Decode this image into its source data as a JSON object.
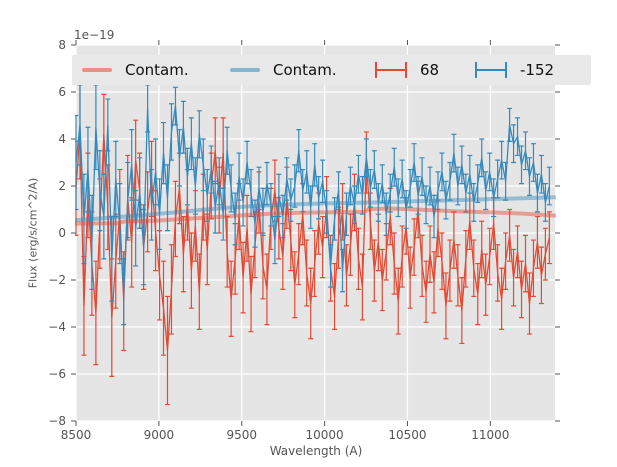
{
  "chart_data": {
    "type": "line",
    "subtype": "spectrum with errorbars",
    "title": "",
    "xlabel": "Wavelength (A)",
    "ylabel": "Flux (erg/s/cm^2/A)",
    "offset_text": "1e−19",
    "xlim": [
      8500,
      11390
    ],
    "ylim": [
      -8,
      8
    ],
    "xticks": [
      8500,
      9000,
      9500,
      10000,
      10500,
      11000
    ],
    "yticks": [
      -8,
      -6,
      -4,
      -2,
      0,
      2,
      4,
      6,
      8
    ],
    "grid": true,
    "legend_position": "upper center, single row",
    "colors": {
      "red": "#E24A33",
      "blue": "#348ABD",
      "plot_bg": "#E5E5E5",
      "grid": "#FFFFFF",
      "tick_text": "#555555",
      "legend_bg": "#E8E8E8"
    },
    "legend": [
      {
        "label": "Contam.",
        "swatch": "thick-line",
        "color": "#E24A33"
      },
      {
        "label": "Contam.",
        "swatch": "thick-line",
        "color": "#348ABD"
      },
      {
        "label": "68",
        "swatch": "errorbar",
        "color": "#E24A33"
      },
      {
        "label": "-152",
        "swatch": "errorbar",
        "color": "#348ABD"
      }
    ],
    "series": [
      {
        "name": "Contam.",
        "color_key": "red",
        "style": "thick-translucent-line",
        "x": [
          8500,
          8650,
          8750,
          8800,
          8900,
          9000,
          9100,
          9250,
          9400,
          9550,
          9700,
          9850,
          10000,
          10150,
          10240,
          10270,
          10400,
          10550,
          10700,
          10850,
          11000,
          11150,
          11300,
          11390
        ],
        "y": [
          0.4,
          0.41,
          0.42,
          0.5,
          0.51,
          0.53,
          0.58,
          0.64,
          0.7,
          0.77,
          0.83,
          0.86,
          0.88,
          0.89,
          0.9,
          1.02,
          1.04,
          1.0,
          0.95,
          0.91,
          0.88,
          0.84,
          0.78,
          0.74
        ]
      },
      {
        "name": "Contam.",
        "color_key": "blue",
        "style": "thick-translucent-line",
        "x": [
          8500,
          8650,
          8800,
          8950,
          9100,
          9250,
          9400,
          9550,
          9700,
          9850,
          10000,
          10150,
          10300,
          10450,
          10600,
          10750,
          10900,
          11050,
          11200,
          11390
        ],
        "y": [
          0.55,
          0.62,
          0.7,
          0.79,
          0.88,
          0.98,
          1.07,
          1.14,
          1.19,
          1.23,
          1.26,
          1.28,
          1.3,
          1.33,
          1.36,
          1.39,
          1.42,
          1.45,
          1.48,
          1.52
        ]
      },
      {
        "name": "68",
        "color_key": "red",
        "style": "errorbar",
        "x_start": 8500,
        "x_step": 24,
        "y": [
          1.9,
          4.3,
          -3.1,
          1.6,
          -1.3,
          -3.4,
          0.4,
          4.2,
          1.1,
          -3.6,
          -1.2,
          0.8,
          -2.9,
          1.5,
          -0.4,
          3.1,
          1.8,
          -0.6,
          0.9,
          2.3,
          0.1,
          -1.8,
          -3.2,
          -5.0,
          -2.4,
          0.6,
          1.9,
          -0.9,
          1.2,
          -1.6,
          0.3,
          -2.5,
          1.1,
          -0.7,
          2.0,
          3.5,
          1.4,
          3.4,
          -0.8,
          -2.8,
          -1.1,
          0.7,
          -1.9,
          0.2,
          -2.6,
          -0.5,
          1.3,
          -1.4,
          -2.4,
          0.6,
          1.8,
          0.2,
          -1.0,
          1.5,
          -0.3,
          -2.2,
          -0.9,
          0.8,
          -1.7,
          -3.0,
          -1.3,
          0.4,
          -0.6,
          1.1,
          -1.5,
          -2.7,
          -0.2,
          0.9,
          -1.8,
          -0.5,
          1.3,
          -1.1,
          -2.3,
          3.0,
          0.5,
          -1.6,
          -0.4,
          -2.0,
          -0.8,
          0.7,
          -1.3,
          -2.9,
          -1.0,
          0.3,
          -1.9,
          -0.6,
          1.0,
          -1.4,
          -2.5,
          -0.9,
          -2.1,
          0.2,
          -1.2,
          -3.1,
          -1.6,
          -0.3,
          -1.8,
          -3.3,
          -1.1,
          0.5,
          -1.5,
          -2.6,
          -0.7,
          -2.2,
          -1.0,
          0.4,
          -1.7,
          -2.8,
          -1.2,
          -0.1,
          -1.9,
          -0.8,
          -2.4,
          -1.3,
          -3.0,
          -1.5,
          -0.4,
          -1.8,
          -0.9,
          -0.2
        ],
        "yerr": [
          2.0,
          2.0,
          2.1,
          1.8,
          2.2,
          2.2,
          1.9,
          1.7,
          1.8,
          2.5,
          2.0,
          1.9,
          2.1,
          1.8,
          1.9,
          1.7,
          1.6,
          1.8,
          1.7,
          1.6,
          1.7,
          1.9,
          2.0,
          2.3,
          1.9,
          1.6,
          1.5,
          1.6,
          1.5,
          1.6,
          1.5,
          1.6,
          1.4,
          1.5,
          1.4,
          1.4,
          1.4,
          1.5,
          1.5,
          1.6,
          1.5,
          1.4,
          1.5,
          1.4,
          1.6,
          1.4,
          1.3,
          1.4,
          1.5,
          1.3,
          1.3,
          1.3,
          1.4,
          1.3,
          1.3,
          1.4,
          1.3,
          1.3,
          1.4,
          1.5,
          1.4,
          1.3,
          1.3,
          1.3,
          1.4,
          1.4,
          1.3,
          1.2,
          1.3,
          1.3,
          1.2,
          1.3,
          1.4,
          1.3,
          1.2,
          1.3,
          1.2,
          1.3,
          1.2,
          1.2,
          1.3,
          1.4,
          1.3,
          1.2,
          1.3,
          1.2,
          1.2,
          1.3,
          1.3,
          1.2,
          1.3,
          1.2,
          1.2,
          1.4,
          1.3,
          1.2,
          1.3,
          1.4,
          1.2,
          1.2,
          1.2,
          1.3,
          1.2,
          1.3,
          1.2,
          1.1,
          1.2,
          1.3,
          1.2,
          1.1,
          1.2,
          1.1,
          1.2,
          1.2,
          1.3,
          1.2,
          1.1,
          1.2,
          1.1,
          1.1
        ]
      },
      {
        "name": "-152",
        "color_key": "blue",
        "style": "errorbar",
        "x_start": 8500,
        "x_step": 24,
        "y": [
          3.0,
          4.6,
          0.6,
          2.7,
          -0.4,
          4.5,
          1.8,
          0.7,
          4.6,
          -1.1,
          2.3,
          0.4,
          -2.5,
          1.4,
          2.9,
          0.2,
          1.7,
          -0.6,
          5.3,
          1.2,
          2.6,
          0.8,
          3.4,
          1.5,
          4.3,
          5.4,
          3.2,
          4.5,
          2.4,
          3.8,
          2.0,
          4.2,
          2.9,
          1.6,
          2.7,
          1.1,
          2.2,
          0.8,
          3.5,
          1.9,
          0.6,
          2.4,
          1.3,
          3.0,
          1.7,
          0.4,
          1.9,
          0.9,
          2.1,
          1.2,
          -0.3,
          1.6,
          0.7,
          2.3,
          1.4,
          2.0,
          3.5,
          1.8,
          2.6,
          1.1,
          2.9,
          1.5,
          2.2,
          0.9,
          -1.4,
          0.6,
          1.8,
          -1.6,
          0.8,
          2.0,
          1.2,
          2.5,
          1.6,
          3.2,
          1.9,
          2.7,
          1.3,
          2.1,
          0.8,
          1.7,
          2.8,
          1.5,
          2.3,
          1.0,
          1.9,
          3.0,
          1.6,
          2.4,
          1.2,
          2.0,
          0.7,
          1.8,
          2.6,
          1.4,
          2.2,
          3.4,
          2.0,
          2.9,
          1.7,
          2.5,
          1.3,
          2.1,
          3.2,
          1.8,
          2.6,
          1.5,
          2.3,
          3.1,
          2.2,
          4.6,
          3.8,
          4.1,
          2.9,
          3.5,
          2.4,
          3.0,
          1.7,
          2.5,
          1.3,
          2.0
        ],
        "yerr": [
          2.0,
          1.7,
          1.9,
          1.8,
          2.0,
          1.8,
          1.7,
          1.8,
          1.1,
          1.8,
          1.6,
          1.7,
          1.4,
          1.6,
          1.5,
          1.6,
          1.5,
          1.6,
          1.0,
          1.5,
          1.4,
          1.5,
          1.3,
          1.4,
          1.2,
          0.8,
          1.2,
          1.1,
          1.2,
          1.1,
          1.2,
          1.0,
          1.1,
          1.1,
          1.0,
          1.1,
          1.0,
          1.1,
          1.0,
          1.0,
          1.1,
          1.0,
          1.0,
          0.9,
          1.0,
          1.0,
          0.9,
          1.0,
          0.9,
          0.9,
          1.0,
          0.9,
          0.9,
          0.9,
          0.9,
          0.9,
          0.9,
          0.9,
          0.9,
          0.9,
          0.9,
          0.9,
          0.9,
          0.9,
          0.9,
          0.9,
          0.8,
          0.9,
          0.9,
          0.8,
          0.8,
          0.8,
          0.8,
          0.8,
          0.8,
          0.8,
          0.8,
          0.8,
          0.9,
          0.8,
          0.8,
          0.8,
          0.8,
          0.8,
          0.8,
          0.8,
          0.8,
          0.8,
          0.8,
          0.8,
          0.9,
          0.8,
          0.8,
          0.8,
          0.8,
          0.8,
          0.8,
          0.8,
          0.8,
          0.8,
          0.8,
          0.8,
          0.8,
          0.8,
          0.8,
          0.8,
          0.8,
          0.8,
          0.8,
          0.7,
          0.8,
          0.8,
          0.8,
          0.8,
          0.8,
          0.8,
          0.8,
          0.8,
          0.8,
          0.8
        ]
      }
    ]
  }
}
